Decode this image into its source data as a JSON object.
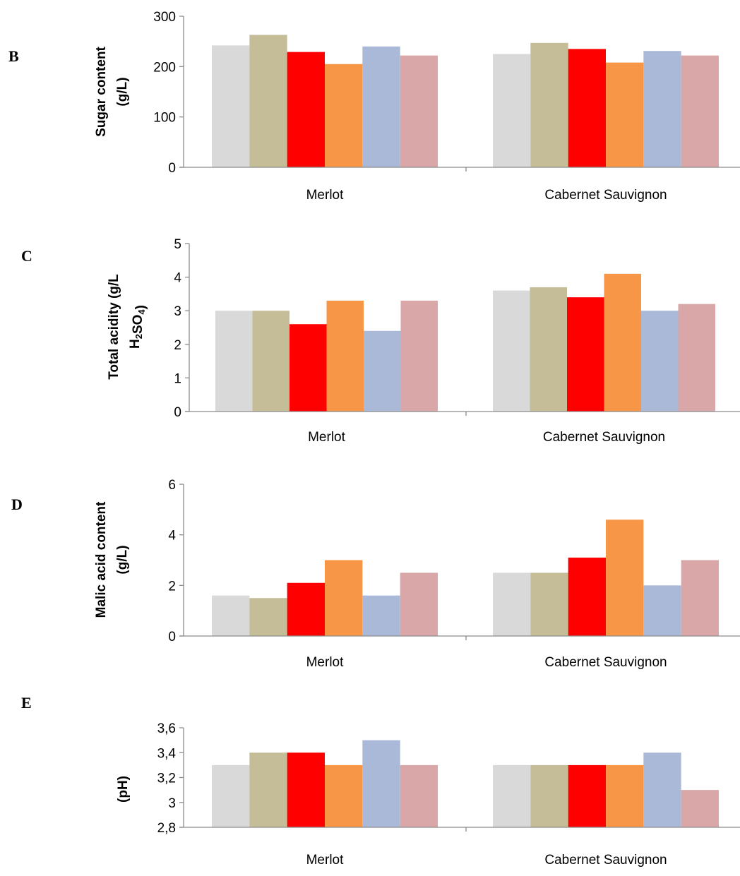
{
  "colors": [
    "#d9d9d9",
    "#c4bd97",
    "#ff0000",
    "#f79646",
    "#a9b9d7",
    "#d9a7a7"
  ],
  "chart_data": [
    {
      "type": "bar",
      "panel_label": "B",
      "ylabel_lines": [
        {
          "text": "Sugar content"
        },
        {
          "text": "(g/L)"
        }
      ],
      "categories": [
        "Merlot",
        "Cabernet Sauvignon"
      ],
      "ylim": [
        0,
        300
      ],
      "yticks": [
        0,
        100,
        200,
        300
      ],
      "ytick_labels": [
        "0",
        "100",
        "200",
        "300"
      ],
      "grid": false,
      "series": [
        {
          "values": [
            242,
            225
          ]
        },
        {
          "values": [
            263,
            247
          ]
        },
        {
          "values": [
            229,
            235
          ]
        },
        {
          "values": [
            205,
            208
          ]
        },
        {
          "values": [
            240,
            231
          ]
        },
        {
          "values": [
            222,
            222
          ]
        }
      ]
    },
    {
      "type": "bar",
      "panel_label": "C",
      "ylabel_lines": [
        {
          "text": "Total acidity (g/L"
        },
        {
          "text": "H",
          "sub1": "2",
          "mid": "SO",
          "sub2": "4",
          "tail": ")"
        }
      ],
      "categories": [
        "Merlot",
        "Cabernet Sauvignon"
      ],
      "ylim": [
        0,
        5
      ],
      "yticks": [
        0,
        1,
        2,
        3,
        4,
        5
      ],
      "ytick_labels": [
        "0",
        "1",
        "2",
        "3",
        "4",
        "5"
      ],
      "grid": false,
      "series": [
        {
          "values": [
            3.0,
            3.6
          ]
        },
        {
          "values": [
            3.0,
            3.7
          ]
        },
        {
          "values": [
            2.6,
            3.4
          ]
        },
        {
          "values": [
            3.3,
            4.1
          ]
        },
        {
          "values": [
            2.4,
            3.0
          ]
        },
        {
          "values": [
            3.3,
            3.2
          ]
        }
      ]
    },
    {
      "type": "bar",
      "panel_label": "D",
      "ylabel_lines": [
        {
          "text": "Malic acid content"
        },
        {
          "text": "(g/L)"
        }
      ],
      "categories": [
        "Merlot",
        "Cabernet Sauvignon"
      ],
      "ylim": [
        0,
        6
      ],
      "yticks": [
        0,
        2,
        4,
        6
      ],
      "ytick_labels": [
        "0",
        "2",
        "4",
        "6"
      ],
      "grid": false,
      "series": [
        {
          "values": [
            1.6,
            2.5
          ]
        },
        {
          "values": [
            1.5,
            2.5
          ]
        },
        {
          "values": [
            2.1,
            3.1
          ]
        },
        {
          "values": [
            3.0,
            4.6
          ]
        },
        {
          "values": [
            1.6,
            2.0
          ]
        },
        {
          "values": [
            2.5,
            3.0
          ]
        }
      ]
    },
    {
      "type": "bar",
      "panel_label": "E",
      "ylabel_lines": [
        {
          "text": "(pH)"
        }
      ],
      "categories": [
        "Merlot",
        "Cabernet Sauvignon"
      ],
      "ylim": [
        2.8,
        3.6
      ],
      "yticks": [
        2.8,
        3.0,
        3.2,
        3.4,
        3.6
      ],
      "ytick_labels": [
        "2,8",
        "3",
        "3,2",
        "3,4",
        "3,6"
      ],
      "grid": false,
      "series": [
        {
          "values": [
            3.3,
            3.3
          ]
        },
        {
          "values": [
            3.4,
            3.3
          ]
        },
        {
          "values": [
            3.4,
            3.3
          ]
        },
        {
          "values": [
            3.3,
            3.3
          ]
        },
        {
          "values": [
            3.5,
            3.4
          ]
        },
        {
          "values": [
            3.3,
            3.1
          ]
        }
      ]
    }
  ]
}
